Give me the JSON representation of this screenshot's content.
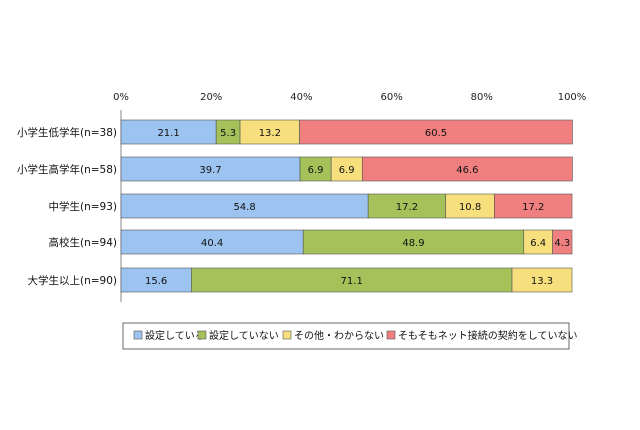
{
  "chart_data": {
    "type": "bar",
    "orientation": "horizontal",
    "stacked": true,
    "percent_stacked": true,
    "x_range": [
      0,
      100
    ],
    "x_ticks": [
      "0%",
      "20%",
      "40%",
      "60%",
      "80%",
      "100%"
    ],
    "grid": false,
    "legend_position": "bottom",
    "categories": [
      "小学生低学年(n=38)",
      "小学生高学年(n=58)",
      "中学生(n=93)",
      "高校生(n=94)",
      "大学生以上(n=90)"
    ],
    "series": [
      {
        "name": "設定している",
        "color": "#9dc3f0",
        "values": [
          21.1,
          39.7,
          54.8,
          40.4,
          15.6
        ],
        "labels": [
          "21.1",
          "39.7",
          "54.8",
          "40.4",
          "15.6"
        ]
      },
      {
        "name": "設定していない",
        "color": "#a5c25a",
        "values": [
          5.3,
          6.9,
          17.2,
          48.9,
          71.1
        ],
        "labels": [
          "5.3",
          "6.9",
          "17.2",
          "48.9",
          "71.1"
        ]
      },
      {
        "name": "その他・わからない",
        "color": "#f7df7e",
        "values": [
          13.2,
          6.9,
          10.8,
          6.4,
          13.3
        ],
        "labels": [
          "13.2",
          "6.9",
          "10.8",
          "6.4",
          "13.3"
        ]
      },
      {
        "name": "そもそもネット接続の契約をしていない",
        "color": "#f08080",
        "values": [
          60.5,
          46.6,
          17.2,
          4.3,
          0
        ],
        "labels": [
          "60.5",
          "46.6",
          "17.2",
          "4.3",
          ""
        ]
      }
    ]
  }
}
